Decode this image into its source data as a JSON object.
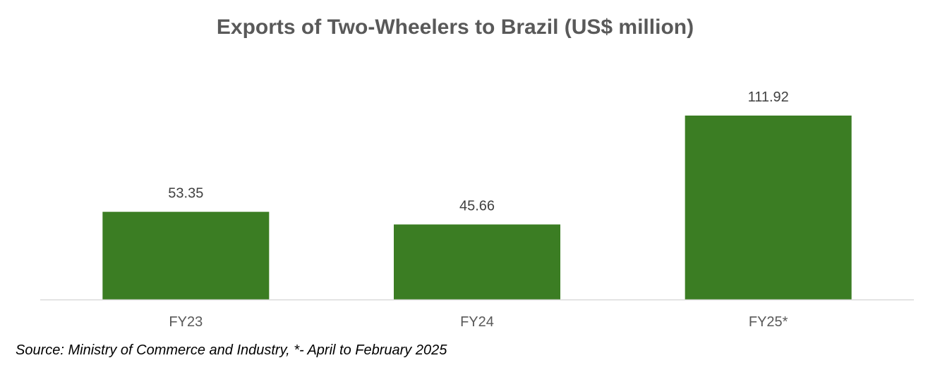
{
  "chart_data": {
    "type": "bar",
    "title": "Exports of Two-Wheelers to Brazil (US$ million)",
    "categories": [
      "FY23",
      "FY24",
      "FY25*"
    ],
    "values": [
      53.35,
      45.66,
      111.92
    ],
    "data_labels": [
      "53.35",
      "45.66",
      "111.92"
    ],
    "xlabel": "",
    "ylabel": "",
    "ylim": [
      0,
      111.92
    ],
    "grid": false,
    "legend": "none",
    "bar_color": "#3b7d23",
    "axis_color": "#d9d9d9",
    "label_color": "#404040"
  },
  "source": "Source: Ministry of Commerce and Industry, *- April to February 2025"
}
